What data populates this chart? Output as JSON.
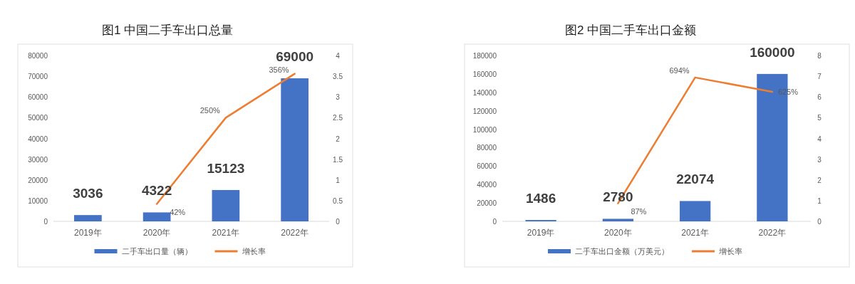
{
  "chart_data": [
    {
      "type": "bar",
      "title": "图1 中国二手车出口总量",
      "categories": [
        "2019年",
        "2020年",
        "2021年",
        "2022年"
      ],
      "series": [
        {
          "name": "二手车出口量（辆）",
          "color": "#4472c4",
          "values": [
            3036,
            4322,
            15123,
            69000
          ],
          "value_labels": [
            "3036",
            "4322",
            "15123",
            "69000"
          ]
        },
        {
          "name": "增长率",
          "type": "line",
          "axis": "y2",
          "color": "#ed7d31",
          "values": [
            null,
            0.42,
            2.5,
            3.56
          ],
          "value_labels": [
            null,
            "42%",
            "250%",
            "356%"
          ]
        }
      ],
      "ylim": [
        0,
        80000
      ],
      "yticks": [
        0,
        10000,
        20000,
        30000,
        40000,
        50000,
        60000,
        70000,
        80000
      ],
      "y2lim": [
        0,
        4
      ],
      "y2ticks": [
        0,
        0.5,
        1,
        1.5,
        2,
        2.5,
        3,
        3.5,
        4
      ],
      "legend": "bottom",
      "marker": "none"
    },
    {
      "type": "bar",
      "title": "图2 中国二手车出口金额",
      "categories": [
        "2019年",
        "2020年",
        "2021年",
        "2022年"
      ],
      "series": [
        {
          "name": "二手车出口金额（万美元）",
          "color": "#4472c4",
          "values": [
            1486,
            2780,
            22074,
            160000
          ],
          "value_labels": [
            "1486",
            "2780",
            "22074",
            "160000"
          ]
        },
        {
          "name": "增长率",
          "type": "line",
          "axis": "y2",
          "color": "#ed7d31",
          "values": [
            null,
            0.87,
            6.94,
            6.25
          ],
          "value_labels": [
            null,
            "87%",
            "694%",
            "625%"
          ]
        }
      ],
      "ylim": [
        0,
        180000
      ],
      "yticks": [
        0,
        20000,
        40000,
        60000,
        80000,
        100000,
        120000,
        140000,
        160000,
        180000
      ],
      "y2lim": [
        0,
        8
      ],
      "y2ticks": [
        0,
        1,
        2,
        3,
        4,
        5,
        6,
        7,
        8
      ],
      "legend": "bottom",
      "marker": "none"
    }
  ]
}
